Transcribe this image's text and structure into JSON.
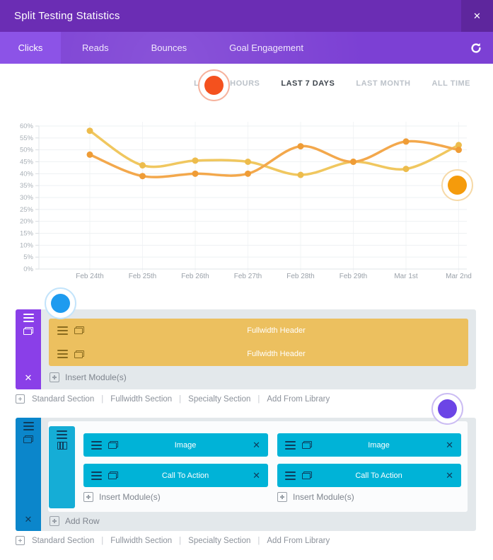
{
  "window": {
    "title": "Split Testing Statistics",
    "close_glyph": "✕"
  },
  "tabs": {
    "items": [
      {
        "label": "Clicks",
        "active": true
      },
      {
        "label": "Reads",
        "active": false
      },
      {
        "label": "Bounces",
        "active": false
      },
      {
        "label": "Goal Engagement",
        "active": false
      }
    ],
    "refresh_icon": "refresh-icon"
  },
  "time_filters": {
    "items": [
      {
        "label": "LAST 24 HOURS",
        "active": false
      },
      {
        "label": "LAST 7 DAYS",
        "active": true
      },
      {
        "label": "LAST MONTH",
        "active": false
      },
      {
        "label": "ALL TIME",
        "active": false
      }
    ]
  },
  "chart_data": {
    "type": "line",
    "title": "",
    "xlabel": "",
    "ylabel": "",
    "categories": [
      "Feb 24th",
      "Feb 25th",
      "Feb 26th",
      "Feb 27th",
      "Feb 28th",
      "Feb 29th",
      "Mar 1st",
      "Mar 2nd"
    ],
    "series": [
      {
        "color": "#F0C75F",
        "marker": "#EDBC4C",
        "values": [
          58,
          43.5,
          45.5,
          45,
          39.5,
          45,
          42,
          52
        ]
      },
      {
        "color": "#F3A84C",
        "marker": "#EF9C36",
        "values": [
          48,
          39,
          40,
          40,
          51.5,
          45,
          53.5,
          50
        ]
      }
    ],
    "ylim": [
      0,
      60
    ],
    "ytick_step": 5,
    "ytick_suffix": "%",
    "grid": true,
    "legend": "none"
  },
  "annotations": {
    "dots": [
      {
        "name": "time-filter-dot",
        "color": "#F4511E",
        "ring": "#F6B39E"
      },
      {
        "name": "chart-dot",
        "color": "#F59B0B",
        "ring": "#F6D9A7"
      },
      {
        "name": "fullwidth-section-dot",
        "color": "#1E9BEF",
        "ring": "#C3E4FB"
      },
      {
        "name": "regular-section-dot",
        "color": "#6C45E6",
        "ring": "#CBBCF3"
      }
    ]
  },
  "builder": {
    "fullwidth_section": {
      "modules": [
        "Fullwidth Header",
        "Fullwidth Header"
      ],
      "insert_modules_label": "Insert Module(s)"
    },
    "regular_section": {
      "columns": [
        {
          "modules": [
            "Image",
            "Call To Action"
          ],
          "insert_modules_label": "Insert Module(s)"
        },
        {
          "modules": [
            "Image",
            "Call To Action"
          ],
          "insert_modules_label": "Insert Module(s)"
        }
      ],
      "add_row_label": "Add Row"
    },
    "section_footer": {
      "links": [
        "Standard Section",
        "Fullwidth Section",
        "Specialty Section",
        "Add From Library"
      ],
      "separator": "|"
    },
    "delete_glyph": "✕"
  },
  "colors": {
    "header_purple": "#6B2DB4",
    "tabbar_purple": "#7C40D4",
    "active_tab_purple": "#8C53E7",
    "section_sidebar_purple": "#8A3FE8",
    "fullwidth_module_yellow": "#ECC05F",
    "section_sidebar_blue": "#0B86CB",
    "column_handle_cyan": "#15ADD6",
    "module_cyan": "#00B3D7",
    "section_body_gray": "#E3E8EB"
  }
}
